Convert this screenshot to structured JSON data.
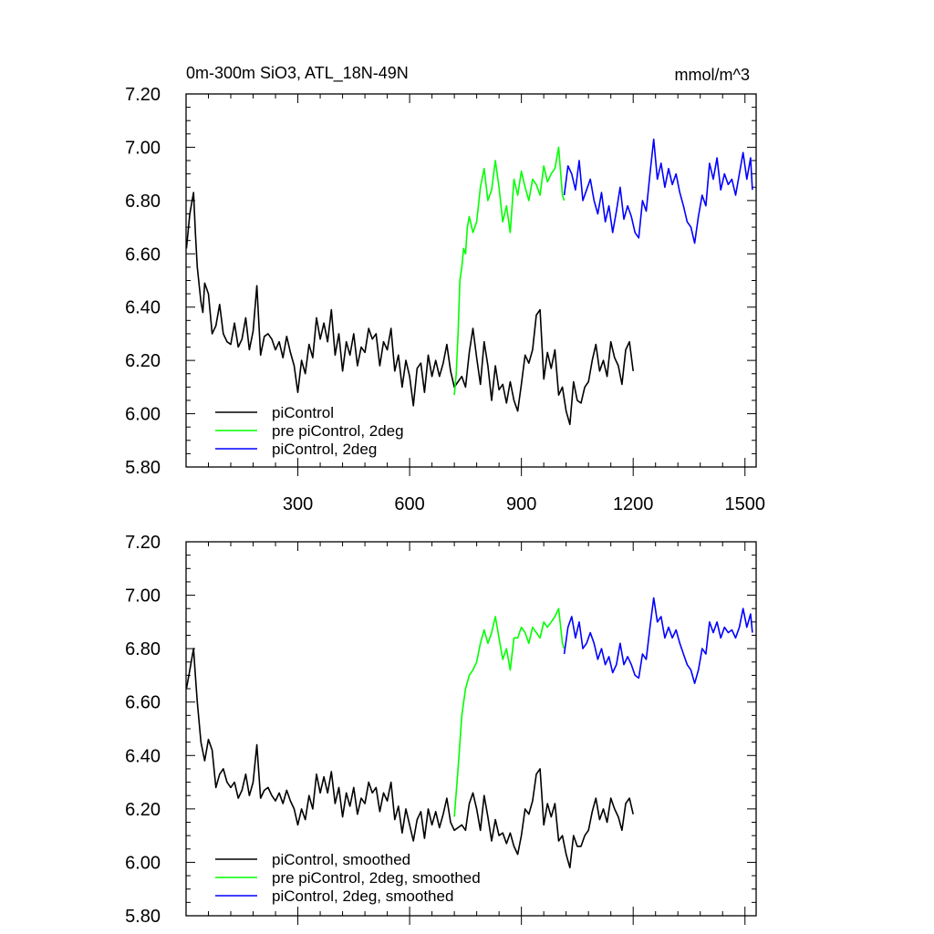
{
  "chart_data": [
    {
      "type": "line",
      "title": "0m-300m SiO3, ATL_18N-49N",
      "units": "mmol/m^3",
      "xlim": [
        0,
        1530
      ],
      "ylim": [
        5.8,
        7.2
      ],
      "xticks": [
        300,
        600,
        900,
        1200,
        1500
      ],
      "xtick_labels": [
        "300",
        "600",
        "900",
        "1200",
        "1500"
      ],
      "yticks": [
        5.8,
        6.0,
        6.2,
        6.4,
        6.6,
        6.8,
        7.0,
        7.2
      ],
      "ytick_labels": [
        "5.80",
        "6.00",
        "6.20",
        "6.40",
        "6.60",
        "6.80",
        "7.00",
        "7.20"
      ],
      "legend_position": "bottom-left",
      "series": [
        {
          "name": "piControl",
          "color": "#000000",
          "x": [
            1,
            10,
            20,
            25,
            30,
            40,
            45,
            50,
            60,
            70,
            80,
            90,
            100,
            110,
            120,
            130,
            140,
            150,
            160,
            170,
            180,
            190,
            200,
            210,
            220,
            230,
            240,
            250,
            260,
            270,
            280,
            290,
            300,
            310,
            320,
            330,
            340,
            350,
            360,
            370,
            380,
            390,
            400,
            410,
            420,
            430,
            440,
            450,
            460,
            470,
            480,
            490,
            500,
            510,
            520,
            530,
            540,
            550,
            560,
            570,
            580,
            590,
            600,
            610,
            620,
            630,
            640,
            650,
            660,
            670,
            680,
            690,
            700,
            710,
            720,
            730,
            740,
            750,
            760,
            770,
            780,
            790,
            800,
            810,
            820,
            830,
            840,
            850,
            860,
            870,
            880,
            890,
            900,
            910,
            920,
            930,
            940,
            950,
            960,
            970,
            980,
            990,
            1000,
            1010,
            1020,
            1030,
            1040,
            1050,
            1060,
            1070,
            1080,
            1090,
            1100,
            1110,
            1120,
            1130,
            1140,
            1150,
            1160,
            1170,
            1180,
            1190,
            1200
          ],
          "y": [
            6.62,
            6.75,
            6.83,
            6.68,
            6.55,
            6.42,
            6.38,
            6.49,
            6.45,
            6.3,
            6.33,
            6.41,
            6.3,
            6.27,
            6.26,
            6.34,
            6.25,
            6.28,
            6.36,
            6.24,
            6.31,
            6.48,
            6.22,
            6.29,
            6.3,
            6.28,
            6.24,
            6.27,
            6.21,
            6.29,
            6.23,
            6.18,
            6.08,
            6.2,
            6.15,
            6.26,
            6.21,
            6.36,
            6.28,
            6.34,
            6.27,
            6.39,
            6.22,
            6.3,
            6.16,
            6.27,
            6.22,
            6.3,
            6.18,
            6.25,
            6.23,
            6.32,
            6.28,
            6.3,
            6.18,
            6.27,
            6.24,
            6.32,
            6.16,
            6.22,
            6.1,
            6.2,
            6.14,
            6.03,
            6.17,
            6.19,
            6.08,
            6.22,
            6.14,
            6.2,
            6.14,
            6.19,
            6.26,
            6.16,
            6.1,
            6.12,
            6.14,
            6.1,
            6.23,
            6.32,
            6.21,
            6.11,
            6.27,
            6.18,
            6.05,
            6.18,
            6.09,
            6.11,
            6.04,
            6.12,
            6.05,
            6.01,
            6.11,
            6.22,
            6.19,
            6.24,
            6.37,
            6.39,
            6.13,
            6.23,
            6.17,
            6.24,
            6.07,
            6.1,
            6.01,
            5.96,
            6.12,
            6.05,
            6.04,
            6.1,
            6.12,
            6.2,
            6.26,
            6.16,
            6.2,
            6.14,
            6.27,
            6.21,
            6.18,
            6.11,
            6.24,
            6.27,
            6.16
          ]
        },
        {
          "name": "pre piControl, 2deg",
          "color": "#00ff00",
          "x": [
            720,
            725,
            730,
            735,
            740,
            745,
            750,
            755,
            760,
            770,
            780,
            790,
            800,
            810,
            820,
            830,
            840,
            850,
            860,
            870,
            880,
            890,
            900,
            910,
            920,
            930,
            940,
            950,
            960,
            970,
            980,
            990,
            1000,
            1010,
            1015
          ],
          "y": [
            6.07,
            6.15,
            6.3,
            6.5,
            6.55,
            6.62,
            6.6,
            6.7,
            6.74,
            6.68,
            6.72,
            6.85,
            6.92,
            6.8,
            6.84,
            6.95,
            6.85,
            6.72,
            6.78,
            6.68,
            6.88,
            6.82,
            6.91,
            6.85,
            6.8,
            6.88,
            6.86,
            6.82,
            6.93,
            6.87,
            6.9,
            6.92,
            7.0,
            6.82,
            6.8
          ]
        },
        {
          "name": "piControl, 2deg",
          "color": "#0000ff",
          "x": [
            1015,
            1025,
            1035,
            1045,
            1055,
            1065,
            1075,
            1085,
            1095,
            1105,
            1115,
            1125,
            1135,
            1145,
            1155,
            1165,
            1175,
            1185,
            1195,
            1205,
            1215,
            1225,
            1235,
            1245,
            1255,
            1265,
            1275,
            1285,
            1295,
            1305,
            1315,
            1325,
            1335,
            1345,
            1355,
            1365,
            1375,
            1385,
            1395,
            1405,
            1415,
            1425,
            1435,
            1445,
            1455,
            1465,
            1475,
            1485,
            1495,
            1505,
            1515,
            1520
          ],
          "y": [
            6.82,
            6.93,
            6.9,
            6.84,
            6.95,
            6.8,
            6.84,
            6.88,
            6.8,
            6.75,
            6.83,
            6.72,
            6.78,
            6.68,
            6.76,
            6.85,
            6.73,
            6.78,
            6.74,
            6.68,
            6.66,
            6.8,
            6.76,
            6.9,
            7.03,
            6.88,
            6.94,
            6.85,
            6.92,
            6.86,
            6.9,
            6.83,
            6.78,
            6.72,
            6.7,
            6.64,
            6.74,
            6.82,
            6.78,
            6.94,
            6.88,
            6.96,
            6.84,
            6.9,
            6.86,
            6.88,
            6.82,
            6.9,
            6.98,
            6.88,
            6.96,
            6.84
          ]
        }
      ]
    },
    {
      "type": "line",
      "xlim": [
        0,
        1530
      ],
      "ylim": [
        5.8,
        7.2
      ],
      "xticks": [
        300,
        600,
        900,
        1200,
        1500
      ],
      "yticks": [
        5.8,
        6.0,
        6.2,
        6.4,
        6.6,
        6.8,
        7.0,
        7.2
      ],
      "ytick_labels": [
        "5.80",
        "6.00",
        "6.20",
        "6.40",
        "6.60",
        "6.80",
        "7.00",
        "7.20"
      ],
      "legend_position": "bottom-left",
      "series": [
        {
          "name": "piControl, smoothed",
          "color": "#000000",
          "x": [
            1,
            10,
            20,
            25,
            30,
            40,
            50,
            60,
            70,
            80,
            90,
            100,
            110,
            120,
            130,
            140,
            150,
            160,
            170,
            180,
            190,
            200,
            210,
            220,
            230,
            240,
            250,
            260,
            270,
            280,
            290,
            300,
            310,
            320,
            330,
            340,
            350,
            360,
            370,
            380,
            390,
            400,
            410,
            420,
            430,
            440,
            450,
            460,
            470,
            480,
            490,
            500,
            510,
            520,
            530,
            540,
            550,
            560,
            570,
            580,
            590,
            600,
            610,
            620,
            630,
            640,
            650,
            660,
            670,
            680,
            690,
            700,
            710,
            720,
            730,
            740,
            750,
            760,
            770,
            780,
            790,
            800,
            810,
            820,
            830,
            840,
            850,
            860,
            870,
            880,
            890,
            900,
            910,
            920,
            930,
            940,
            950,
            960,
            970,
            980,
            990,
            1000,
            1010,
            1020,
            1030,
            1040,
            1050,
            1060,
            1070,
            1080,
            1090,
            1100,
            1110,
            1120,
            1130,
            1140,
            1150,
            1160,
            1170,
            1180,
            1190,
            1200
          ],
          "y": [
            6.65,
            6.72,
            6.8,
            6.7,
            6.6,
            6.45,
            6.38,
            6.46,
            6.42,
            6.28,
            6.33,
            6.35,
            6.3,
            6.28,
            6.3,
            6.24,
            6.27,
            6.33,
            6.25,
            6.3,
            6.44,
            6.24,
            6.27,
            6.28,
            6.25,
            6.23,
            6.26,
            6.22,
            6.27,
            6.23,
            6.2,
            6.14,
            6.2,
            6.16,
            6.25,
            6.2,
            6.33,
            6.26,
            6.32,
            6.26,
            6.34,
            6.22,
            6.28,
            6.17,
            6.26,
            6.21,
            6.28,
            6.18,
            6.24,
            6.22,
            6.3,
            6.26,
            6.28,
            6.19,
            6.26,
            6.23,
            6.3,
            6.16,
            6.21,
            6.11,
            6.2,
            6.14,
            6.08,
            6.16,
            6.19,
            6.09,
            6.2,
            6.14,
            6.19,
            6.13,
            6.18,
            6.24,
            6.15,
            6.12,
            6.13,
            6.14,
            6.12,
            6.22,
            6.26,
            6.2,
            6.12,
            6.25,
            6.17,
            6.08,
            6.16,
            6.1,
            6.11,
            6.07,
            6.11,
            6.06,
            6.03,
            6.1,
            6.2,
            6.18,
            6.23,
            6.33,
            6.35,
            6.14,
            6.22,
            6.17,
            6.22,
            6.08,
            6.1,
            6.03,
            5.98,
            6.1,
            6.06,
            6.06,
            6.1,
            6.12,
            6.19,
            6.24,
            6.16,
            6.2,
            6.15,
            6.24,
            6.2,
            6.17,
            6.12,
            6.22,
            6.24,
            6.18
          ]
        },
        {
          "name": "pre piControl, 2deg, smoothed",
          "color": "#00ff00",
          "x": [
            720,
            730,
            740,
            750,
            760,
            770,
            780,
            790,
            800,
            810,
            820,
            830,
            840,
            850,
            860,
            870,
            880,
            890,
            900,
            910,
            920,
            930,
            940,
            950,
            960,
            970,
            980,
            990,
            1000,
            1010,
            1015
          ],
          "y": [
            6.17,
            6.35,
            6.55,
            6.65,
            6.7,
            6.72,
            6.75,
            6.82,
            6.87,
            6.82,
            6.86,
            6.92,
            6.84,
            6.76,
            6.8,
            6.72,
            6.84,
            6.84,
            6.88,
            6.86,
            6.82,
            6.88,
            6.86,
            6.84,
            6.9,
            6.88,
            6.9,
            6.92,
            6.95,
            6.82,
            6.8
          ]
        },
        {
          "name": "piControl, 2deg, smoothed",
          "color": "#0000ff",
          "x": [
            1015,
            1025,
            1035,
            1045,
            1055,
            1065,
            1075,
            1085,
            1095,
            1105,
            1115,
            1125,
            1135,
            1145,
            1155,
            1165,
            1175,
            1185,
            1195,
            1205,
            1215,
            1225,
            1235,
            1245,
            1255,
            1265,
            1275,
            1285,
            1295,
            1305,
            1315,
            1325,
            1335,
            1345,
            1355,
            1365,
            1375,
            1385,
            1395,
            1405,
            1415,
            1425,
            1435,
            1445,
            1455,
            1465,
            1475,
            1485,
            1495,
            1505,
            1515,
            1520
          ],
          "y": [
            6.78,
            6.88,
            6.92,
            6.84,
            6.9,
            6.8,
            6.82,
            6.86,
            6.82,
            6.76,
            6.8,
            6.74,
            6.77,
            6.71,
            6.74,
            6.82,
            6.74,
            6.77,
            6.74,
            6.7,
            6.69,
            6.78,
            6.76,
            6.88,
            6.99,
            6.9,
            6.92,
            6.84,
            6.88,
            6.84,
            6.87,
            6.82,
            6.78,
            6.74,
            6.72,
            6.67,
            6.72,
            6.8,
            6.78,
            6.9,
            6.86,
            6.9,
            6.84,
            6.88,
            6.86,
            6.87,
            6.84,
            6.88,
            6.95,
            6.88,
            6.93,
            6.86
          ]
        }
      ]
    }
  ]
}
